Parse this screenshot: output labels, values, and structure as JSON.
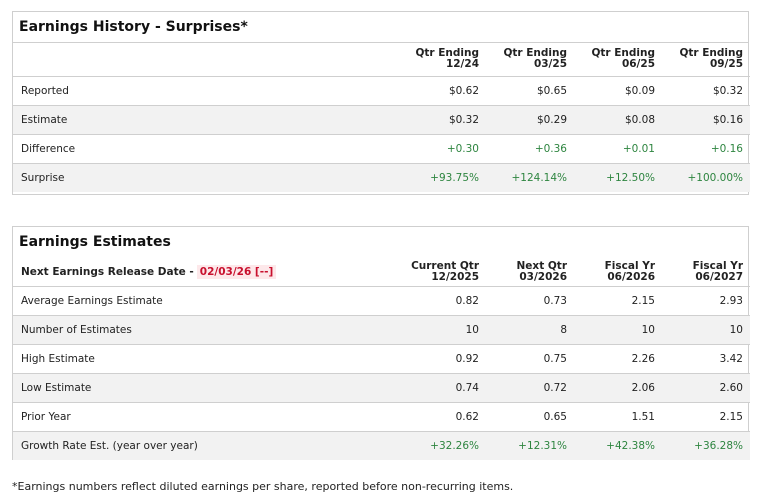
{
  "history": {
    "title": "Earnings History - Surprises*",
    "columns": [
      {
        "line1": "Qtr Ending",
        "line2": "12/24"
      },
      {
        "line1": "Qtr Ending",
        "line2": "03/25"
      },
      {
        "line1": "Qtr Ending",
        "line2": "06/25"
      },
      {
        "line1": "Qtr Ending",
        "line2": "09/25"
      }
    ],
    "rows": [
      {
        "label": "Reported",
        "values": [
          "$0.62",
          "$0.65",
          "$0.09",
          "$0.32"
        ]
      },
      {
        "label": "Estimate",
        "values": [
          "$0.32",
          "$0.29",
          "$0.08",
          "$0.16"
        ]
      },
      {
        "label": "Difference",
        "values": [
          "+0.30",
          "+0.36",
          "+0.01",
          "+0.16"
        ]
      },
      {
        "label": "Surprise",
        "values": [
          "+93.75%",
          "+124.14%",
          "+12.50%",
          "+100.00%"
        ]
      }
    ]
  },
  "estimates": {
    "title": "Earnings Estimates",
    "release_label": "Next Earnings Release Date -",
    "release_date": "02/03/26 [--]",
    "columns": [
      {
        "line1": "Current Qtr",
        "line2": "12/2025"
      },
      {
        "line1": "Next Qtr",
        "line2": "03/2026"
      },
      {
        "line1": "Fiscal Yr",
        "line2": "06/2026"
      },
      {
        "line1": "Fiscal Yr",
        "line2": "06/2027"
      }
    ],
    "rows": [
      {
        "label": "Average Earnings Estimate",
        "values": [
          "0.82",
          "0.73",
          "2.15",
          "2.93"
        ]
      },
      {
        "label": "Number of Estimates",
        "values": [
          "10",
          "8",
          "10",
          "10"
        ]
      },
      {
        "label": "High Estimate",
        "values": [
          "0.92",
          "0.75",
          "2.26",
          "3.42"
        ]
      },
      {
        "label": "Low Estimate",
        "values": [
          "0.74",
          "0.72",
          "2.06",
          "2.60"
        ]
      },
      {
        "label": "Prior Year",
        "values": [
          "0.62",
          "0.65",
          "1.51",
          "2.15"
        ]
      },
      {
        "label": "Growth Rate Est. (year over year)",
        "values": [
          "+32.26%",
          "+12.31%",
          "+42.38%",
          "+36.28%"
        ]
      }
    ]
  },
  "footnote": "*Earnings numbers reflect diluted earnings per share, reported before non-recurring items.",
  "colors": {
    "positive": "#2e8540",
    "release_date": "#c8102e",
    "row_alt": "#f2f2f2",
    "border": "#cfcfcf"
  }
}
